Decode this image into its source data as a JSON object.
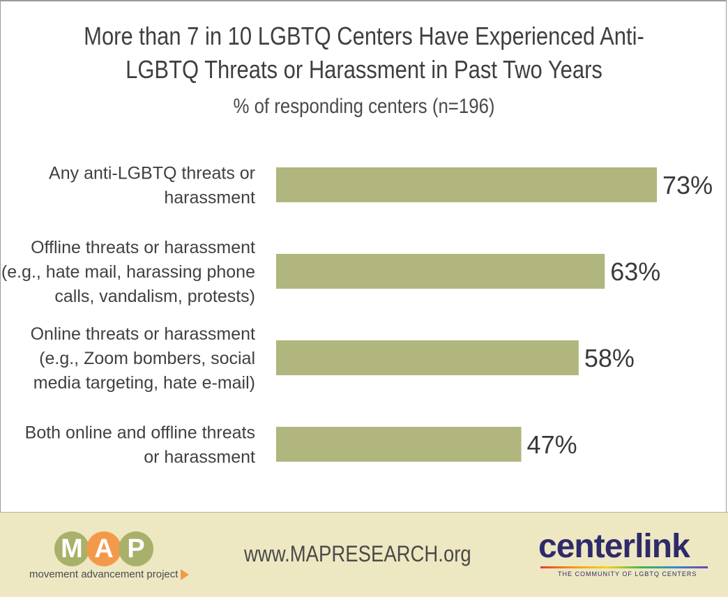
{
  "title_line1": "More than 7 in 10 LGBTQ Centers Have Experienced Anti-",
  "title_line2": "LGBTQ Threats or Harassment in Past Two Years",
  "subtitle": "% of responding centers (n=196)",
  "colors": {
    "bar": "#b1b67e",
    "footer": "#ede8c2"
  },
  "chart_data": {
    "type": "bar",
    "orientation": "horizontal",
    "categories": [
      [
        "Any anti-LGBTQ threats or",
        "harassment"
      ],
      [
        "Offline threats or harassment",
        "(e.g., hate mail, harassing phone",
        "calls, vandalism, protests)"
      ],
      [
        "Online threats or harassment",
        "(e.g., Zoom bombers, social",
        "media targeting, hate e-mail)"
      ],
      [
        "Both online and offline threats",
        "or harassment"
      ]
    ],
    "values": [
      73,
      63,
      58,
      47
    ],
    "value_labels": [
      "73%",
      "63%",
      "58%",
      "47%"
    ],
    "unit": "%",
    "grid": false,
    "legend": "none"
  },
  "footer": {
    "map_letters": [
      "M",
      "A",
      "P"
    ],
    "map_tagline": "movement advancement project",
    "url": "www.MAPRESEARCH.org",
    "centerlink_name": "centerlink",
    "centerlink_tagline": "THE COMMUNITY OF LGBTQ CENTERS"
  }
}
